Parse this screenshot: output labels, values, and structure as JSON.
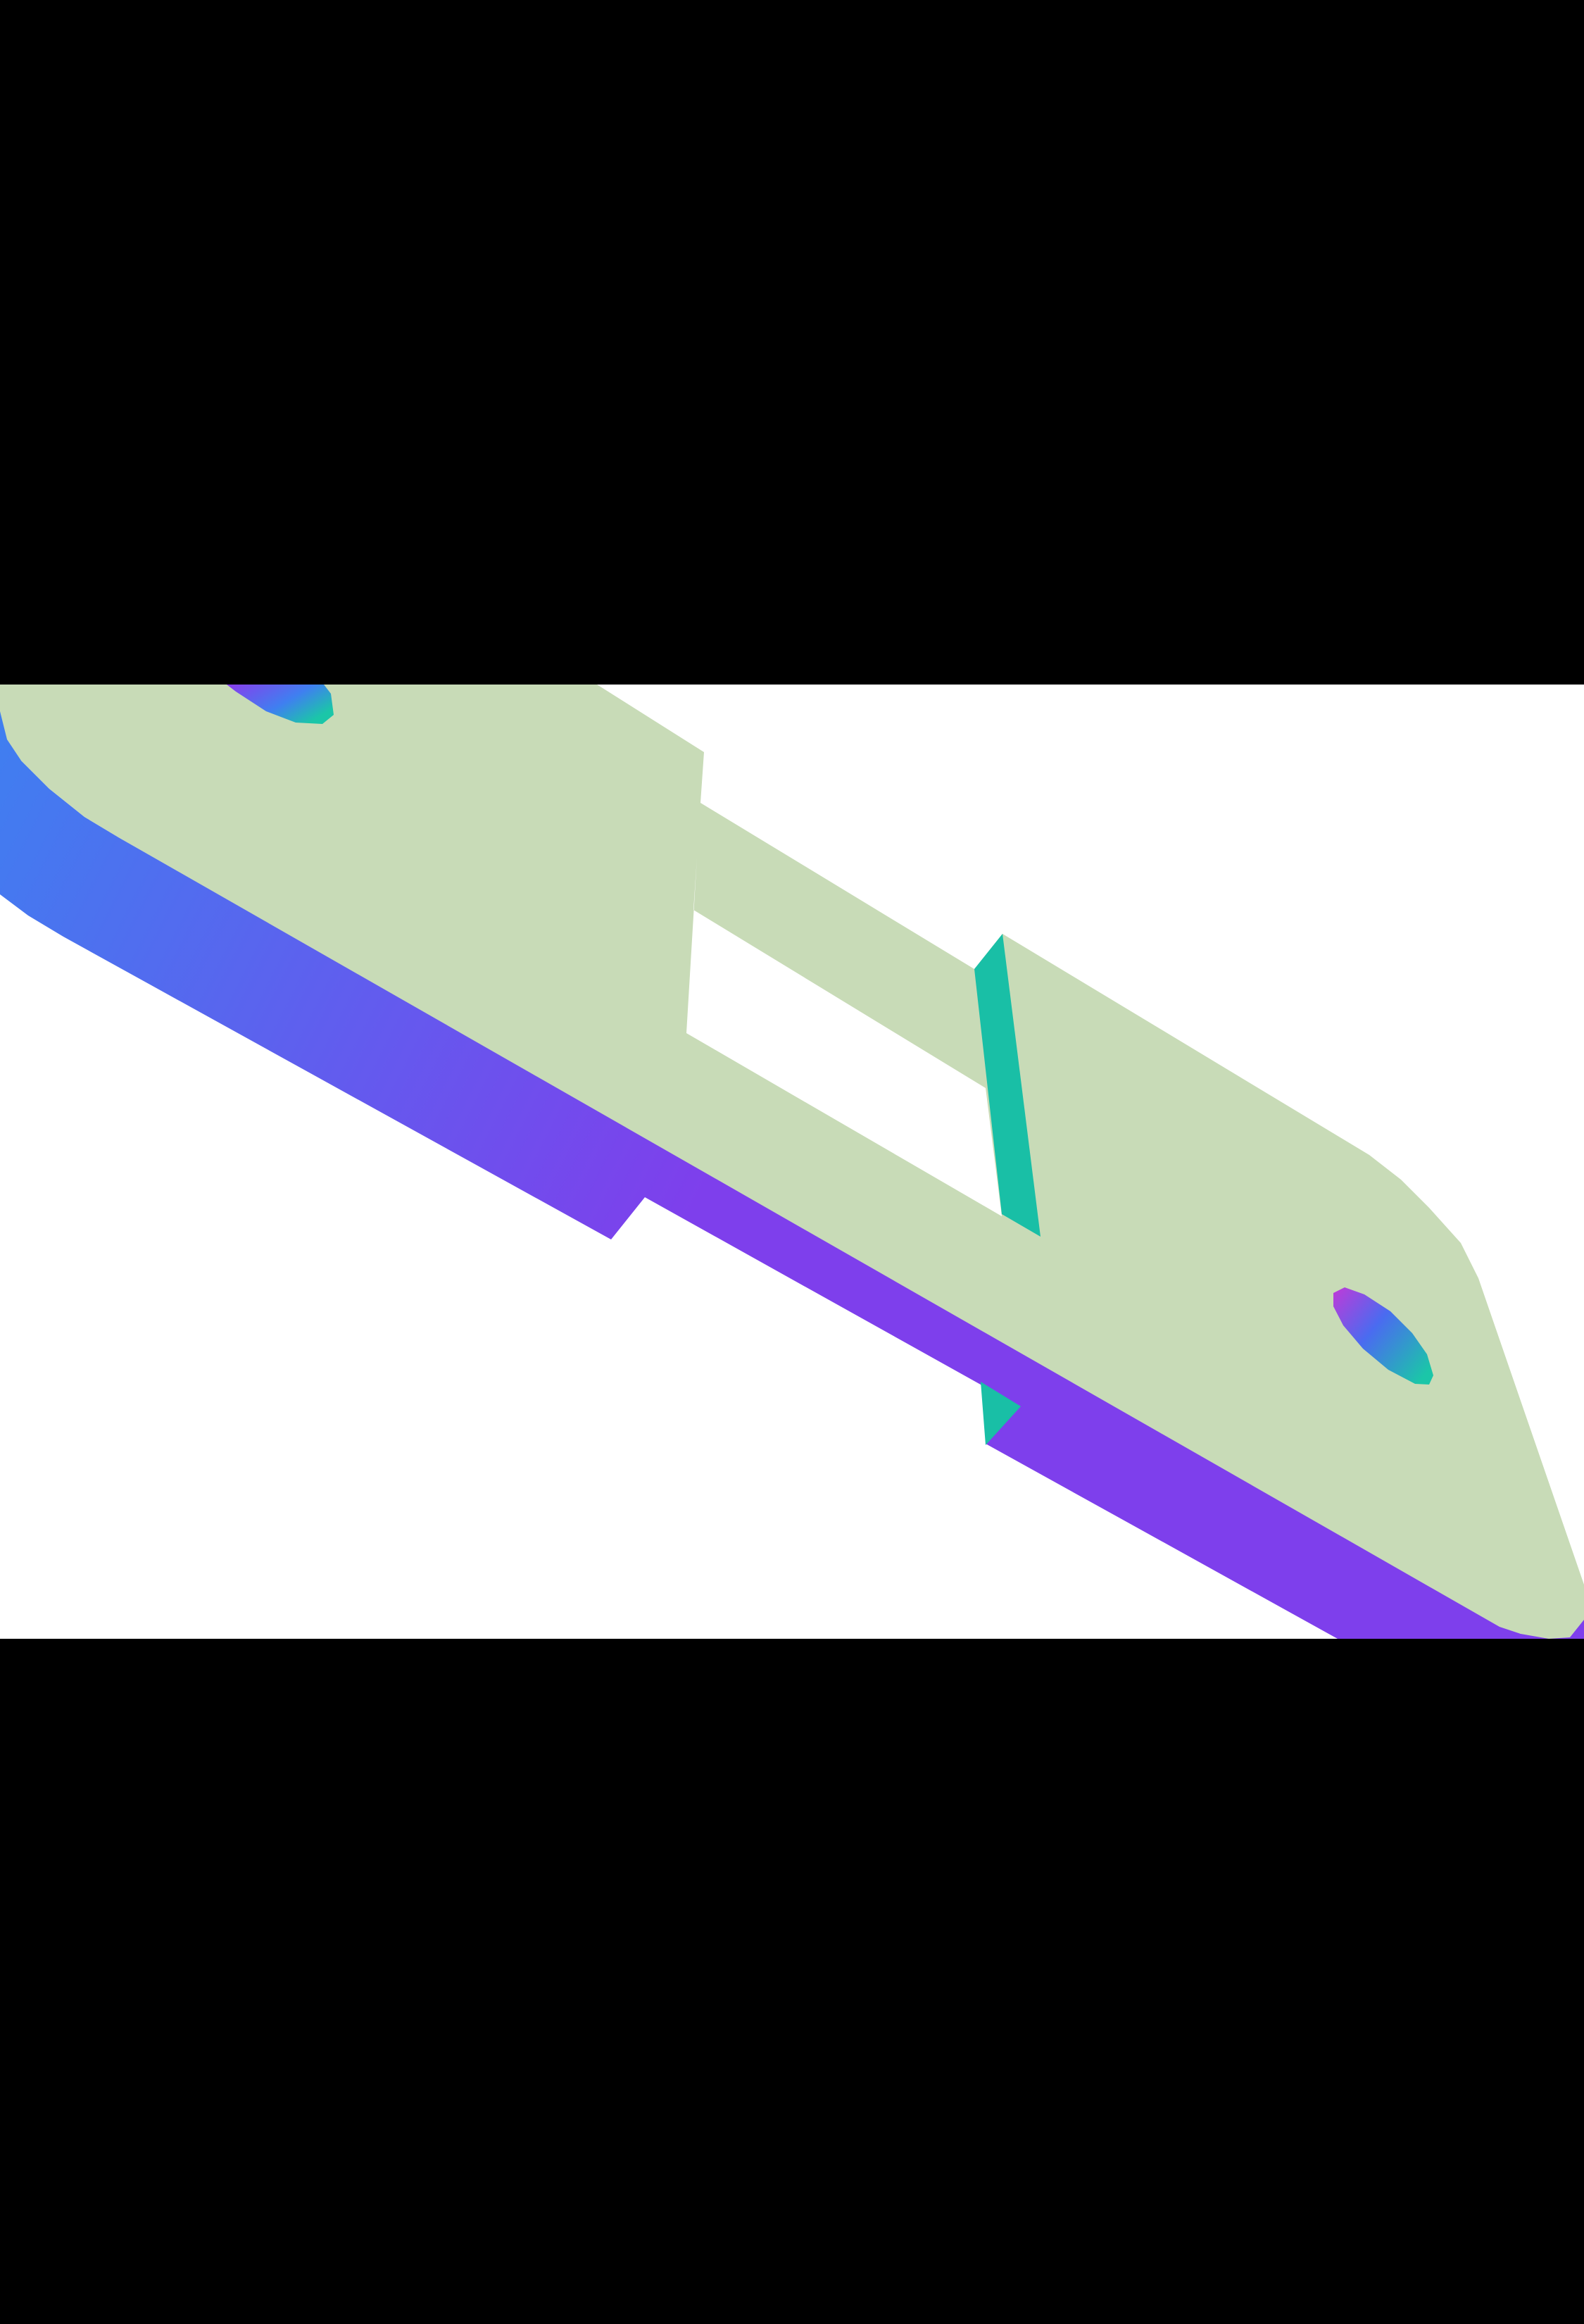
{
  "scene": {
    "background_color": "#ffffff",
    "letterbox_color": "#000000",
    "palette": {
      "top_face": "#c8dbb7",
      "side_face": "#7e3fec",
      "edge_face": "#19bfa6",
      "gradient_blue": "#3f7ff0",
      "gradient_magenta": "#c03ad8",
      "gradient_teal": "#1bc6a8"
    },
    "object": "perforated-plate-3d-render"
  }
}
